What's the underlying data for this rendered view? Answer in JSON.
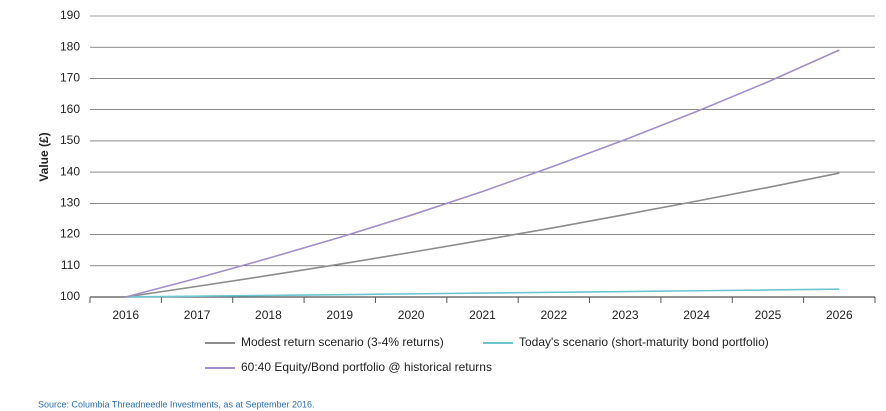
{
  "chart_data": {
    "type": "line",
    "y_label": "Value (£)",
    "categories": [
      "2016",
      "2017",
      "2018",
      "2019",
      "2020",
      "2021",
      "2022",
      "2023",
      "2024",
      "2025",
      "2026"
    ],
    "series": [
      {
        "name": "Modest return scenario (3-4% returns)",
        "color": "#8c8c8c",
        "values": [
          100,
          103.4,
          106.9,
          110.5,
          114.3,
          118.2,
          122.2,
          126.4,
          130.7,
          135.1,
          139.7
        ]
      },
      {
        "name": "Today's scenario (short-maturity bond portfolio)",
        "color": "#6cc5cf",
        "values": [
          100,
          100.25,
          100.5,
          100.75,
          101,
          101.25,
          101.5,
          101.75,
          102,
          102.25,
          102.5
        ]
      },
      {
        "name": "60:40 Equity/Bond portfolio @ historical returns",
        "color": "#a28fc9",
        "values": [
          100,
          106,
          112.4,
          119.1,
          126.2,
          133.8,
          141.9,
          150.4,
          159.4,
          168.9,
          179.1
        ]
      }
    ],
    "ylim": [
      100,
      190
    ],
    "yticks": [
      100,
      110,
      120,
      130,
      140,
      150,
      160,
      170,
      180,
      190
    ],
    "grid": true,
    "source": "Source: Columbia Threadneedle Investments, as at September 2016."
  }
}
